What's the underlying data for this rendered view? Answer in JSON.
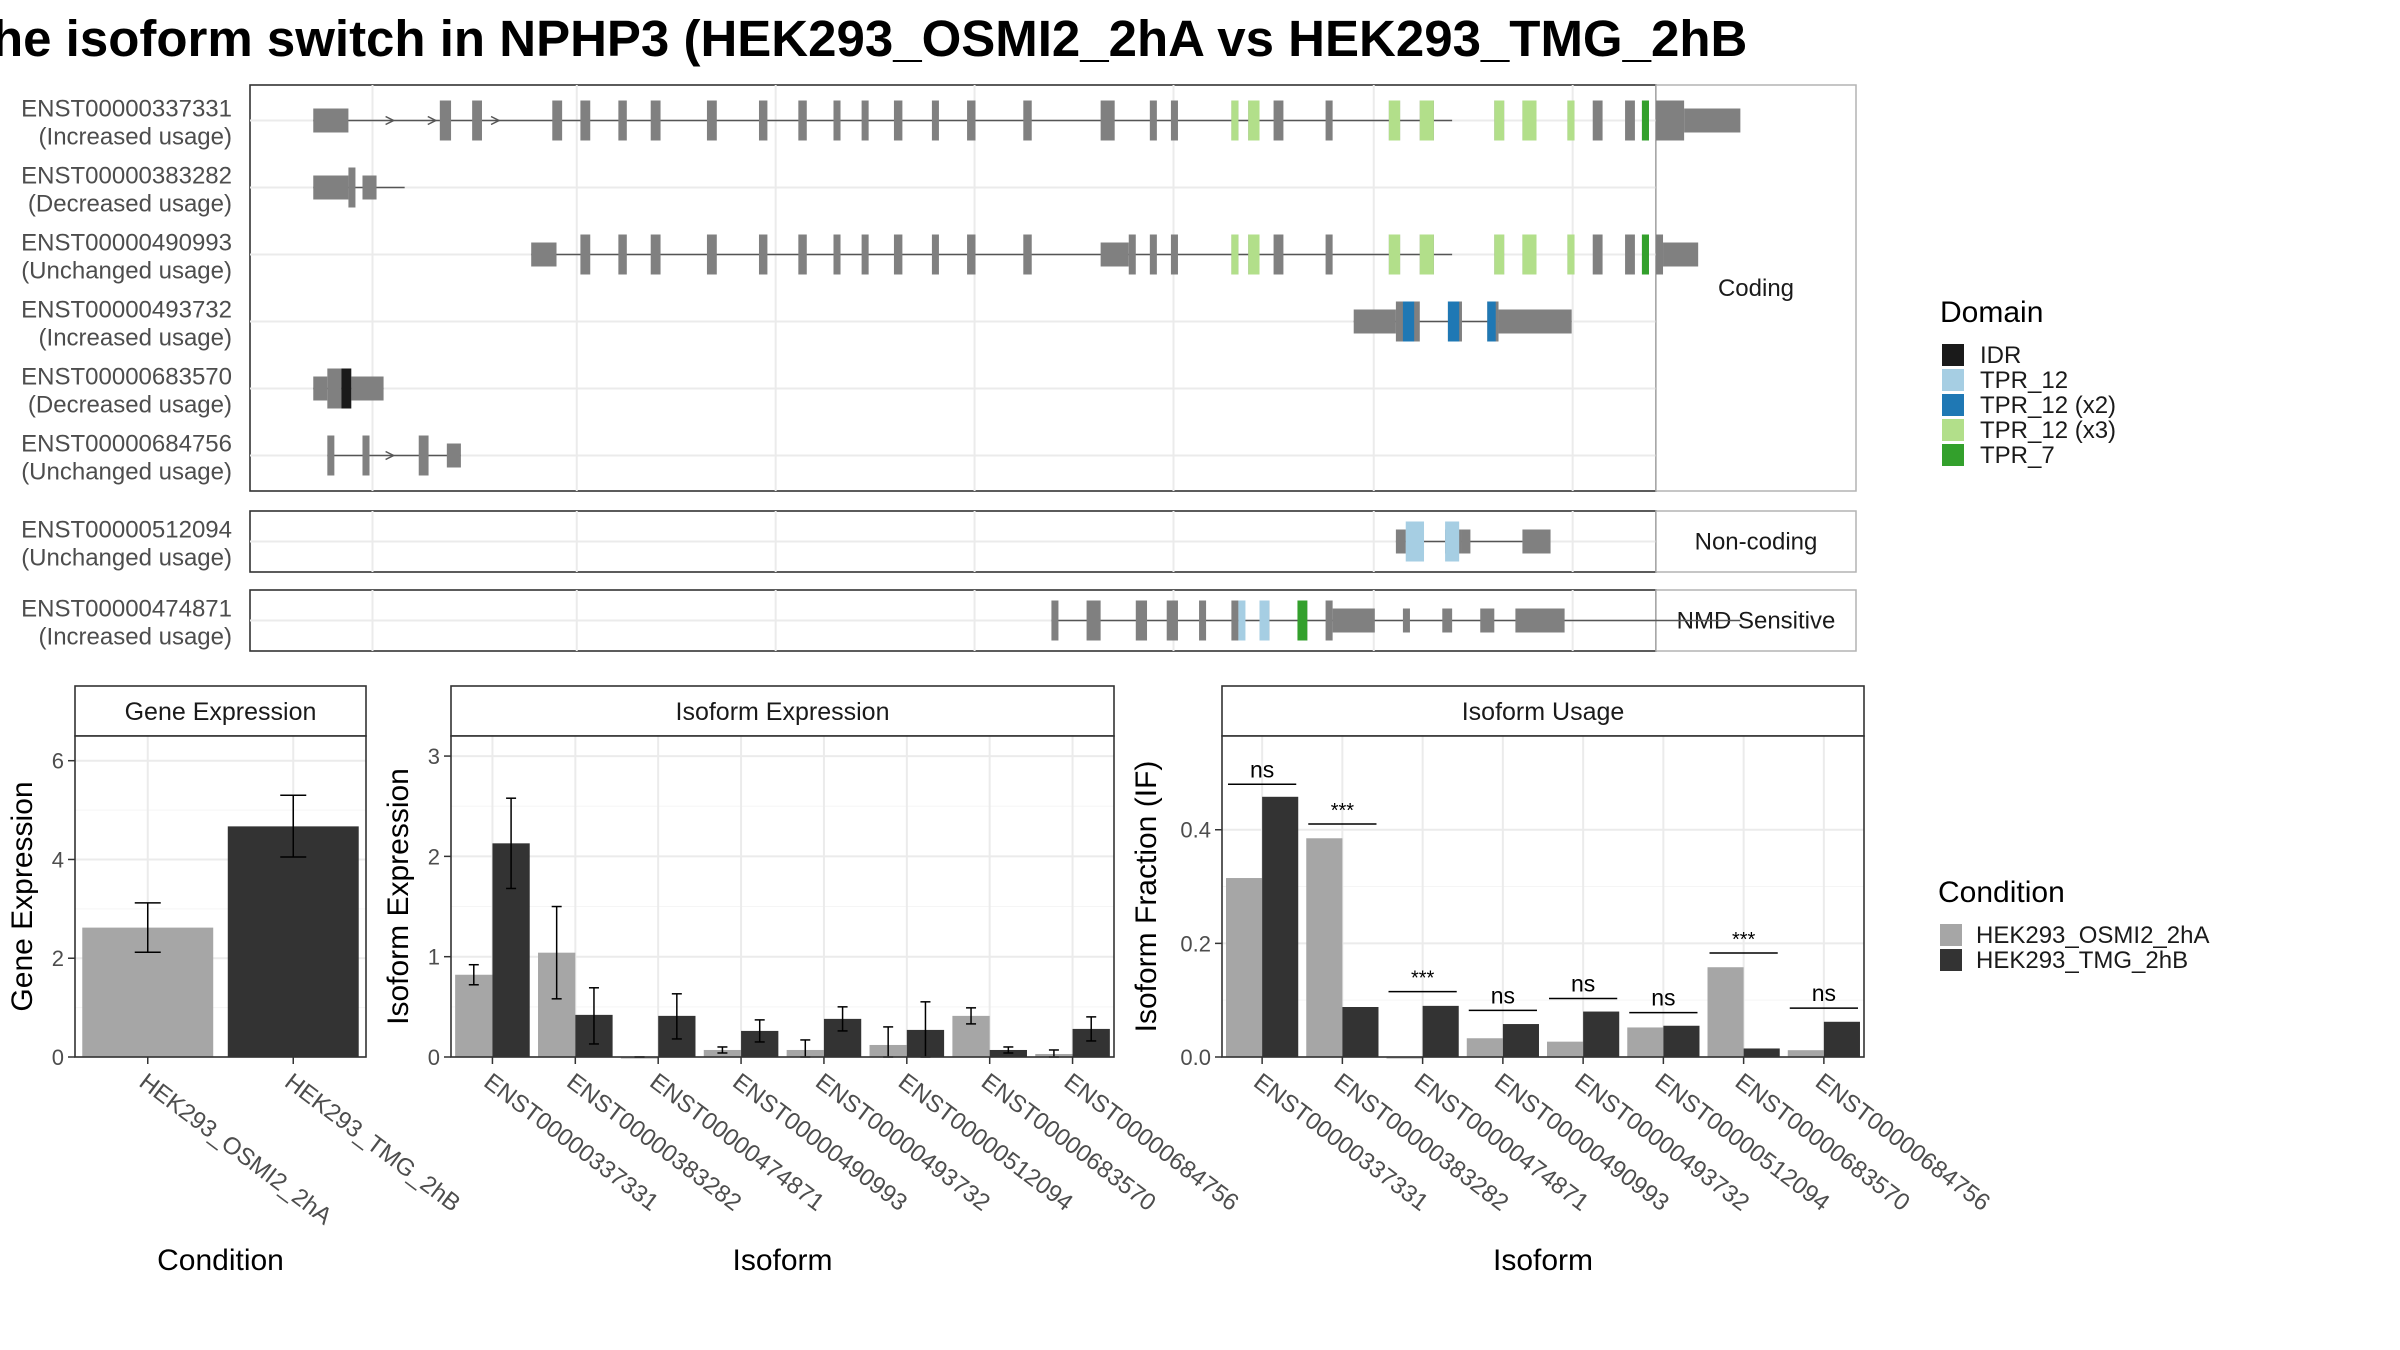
{
  "title": "he isoform switch in NPHP3 (HEK293_OSMI2_2hA vs HEK293_TMG_2hB",
  "colors": {
    "exon": "#808080",
    "intron": "#555555",
    "panel_border": "#333333",
    "strip_border": "#b3b3b3",
    "grid": "#ebebeb",
    "IDR": "#1a1a1a",
    "TPR_12": "#a6cee3",
    "TPR_12_x2": "#1f78b4",
    "TPR_12_x3": "#b2df8a",
    "TPR_7": "#33a02c",
    "HEK293_OSMI2_2hA": "#a6a6a6",
    "HEK293_TMG_2hB": "#333333"
  },
  "structure": {
    "genomic_range": [
      0,
      1000
    ],
    "groups": [
      {
        "label": "Coding",
        "transcripts": [
          {
            "id": "ENST00000337331",
            "usage": "(Increased usage)",
            "line": [
              45,
              855
            ],
            "arrows": [
              100,
              130,
              175
            ],
            "exons": [
              [
                45,
                70,
                "u"
              ],
              [
                135,
                143,
                "c"
              ],
              [
                158,
                165,
                "c"
              ],
              [
                215,
                222,
                "c"
              ],
              [
                235,
                242,
                "c"
              ],
              [
                262,
                268,
                "c"
              ],
              [
                285,
                292,
                "c"
              ],
              [
                325,
                332,
                "c"
              ],
              [
                362,
                368,
                "c"
              ],
              [
                390,
                396,
                "c"
              ],
              [
                415,
                420,
                "c"
              ],
              [
                435,
                440,
                "c"
              ],
              [
                458,
                464,
                "c"
              ],
              [
                485,
                490,
                "c"
              ],
              [
                510,
                516,
                "c"
              ],
              [
                550,
                556,
                "c"
              ],
              [
                605,
                615,
                "c"
              ],
              [
                640,
                645,
                "c"
              ],
              [
                655,
                660,
                "c"
              ],
              [
                698,
                703,
                "c"
              ],
              [
                710,
                718,
                "c"
              ],
              [
                728,
                735,
                "c"
              ],
              [
                765,
                770,
                "c"
              ],
              [
                810,
                818,
                "c"
              ],
              [
                832,
                842,
                "c"
              ],
              [
                885,
                892,
                "c"
              ],
              [
                905,
                915,
                "c"
              ],
              [
                937,
                942,
                "c"
              ],
              [
                955,
                962,
                "c"
              ],
              [
                978,
                985,
                "c"
              ],
              [
                990,
                995,
                "c"
              ],
              [
                1000,
                1020,
                "c"
              ],
              [
                1020,
                1060,
                "u"
              ]
            ],
            "domains": [
              [
                698,
                703,
                "TPR_12_x3"
              ],
              [
                710,
                718,
                "TPR_12_x3"
              ],
              [
                810,
                818,
                "TPR_12_x3"
              ],
              [
                832,
                842,
                "TPR_12_x3"
              ],
              [
                885,
                892,
                "TPR_12_x3"
              ],
              [
                905,
                915,
                "TPR_12_x3"
              ],
              [
                937,
                942,
                "TPR_12_x3"
              ],
              [
                990,
                995,
                "TPR_7"
              ]
            ]
          },
          {
            "id": "ENST00000383282",
            "usage": "(Decreased usage)",
            "line": [
              45,
              110
            ],
            "arrows": [],
            "exons": [
              [
                45,
                70,
                "u"
              ],
              [
                70,
                75,
                "c"
              ],
              [
                80,
                90,
                "u"
              ]
            ],
            "domains": []
          },
          {
            "id": "ENST00000490993",
            "usage": "(Unchanged usage)",
            "line": [
              200,
              855
            ],
            "arrows": [],
            "exons": [
              [
                200,
                218,
                "u"
              ],
              [
                235,
                242,
                "c"
              ],
              [
                262,
                268,
                "c"
              ],
              [
                285,
                292,
                "c"
              ],
              [
                325,
                332,
                "c"
              ],
              [
                362,
                368,
                "c"
              ],
              [
                390,
                396,
                "c"
              ],
              [
                415,
                420,
                "c"
              ],
              [
                435,
                440,
                "c"
              ],
              [
                458,
                464,
                "c"
              ],
              [
                485,
                490,
                "c"
              ],
              [
                510,
                516,
                "c"
              ],
              [
                550,
                556,
                "c"
              ],
              [
                605,
                625,
                "u"
              ],
              [
                625,
                630,
                "c"
              ],
              [
                640,
                645,
                "c"
              ],
              [
                655,
                660,
                "c"
              ],
              [
                698,
                703,
                "c"
              ],
              [
                710,
                718,
                "c"
              ],
              [
                728,
                735,
                "c"
              ],
              [
                765,
                770,
                "c"
              ],
              [
                810,
                818,
                "c"
              ],
              [
                832,
                842,
                "c"
              ],
              [
                885,
                892,
                "c"
              ],
              [
                905,
                915,
                "c"
              ],
              [
                937,
                942,
                "c"
              ],
              [
                955,
                962,
                "c"
              ],
              [
                978,
                985,
                "c"
              ],
              [
                990,
                995,
                "c"
              ],
              [
                1000,
                1005,
                "c"
              ],
              [
                1005,
                1030,
                "u"
              ]
            ],
            "domains": [
              [
                698,
                703,
                "TPR_12_x3"
              ],
              [
                710,
                718,
                "TPR_12_x3"
              ],
              [
                810,
                818,
                "TPR_12_x3"
              ],
              [
                832,
                842,
                "TPR_12_x3"
              ],
              [
                885,
                892,
                "TPR_12_x3"
              ],
              [
                905,
                915,
                "TPR_12_x3"
              ],
              [
                937,
                942,
                "TPR_12_x3"
              ],
              [
                990,
                995,
                "TPR_7"
              ]
            ]
          },
          {
            "id": "ENST00000493732",
            "usage": "(Increased usage)",
            "line": [
              785,
              940
            ],
            "arrows": [],
            "exons": [
              [
                785,
                815,
                "u"
              ],
              [
                815,
                832,
                "c"
              ],
              [
                852,
                862,
                "c"
              ],
              [
                880,
                888,
                "c"
              ],
              [
                888,
                940,
                "u"
              ]
            ],
            "domains": [
              [
                820,
                828,
                "TPR_12_x2"
              ],
              [
                852,
                860,
                "TPR_12_x2"
              ],
              [
                880,
                886,
                "TPR_12_x2"
              ]
            ]
          },
          {
            "id": "ENST00000683570",
            "usage": "(Decreased usage)",
            "line": [
              45,
              95
            ],
            "arrows": [],
            "exons": [
              [
                45,
                55,
                "u"
              ],
              [
                55,
                65,
                "c"
              ],
              [
                65,
                72,
                "c"
              ],
              [
                72,
                95,
                "u"
              ]
            ],
            "domains": [
              [
                65,
                72,
                "IDR"
              ]
            ]
          },
          {
            "id": "ENST00000684756",
            "usage": "(Unchanged usage)",
            "line": [
              55,
              150
            ],
            "arrows": [
              100
            ],
            "exons": [
              [
                55,
                60,
                "c"
              ],
              [
                80,
                85,
                "c"
              ],
              [
                120,
                127,
                "c"
              ],
              [
                140,
                150,
                "u"
              ]
            ],
            "domains": []
          }
        ]
      },
      {
        "label": "Non-coding",
        "transcripts": [
          {
            "id": "ENST00000512094",
            "usage": "(Unchanged usage)",
            "line": [
              815,
              905
            ],
            "arrows": [],
            "exons": [
              [
                815,
                822,
                "u"
              ],
              [
                822,
                835,
                "u"
              ],
              [
                850,
                862,
                "u"
              ],
              [
                862,
                868,
                "u"
              ],
              [
                905,
                925,
                "u"
              ]
            ],
            "domains": [
              [
                822,
                835,
                "TPR_12"
              ],
              [
                850,
                860,
                "TPR_12"
              ]
            ]
          }
        ]
      },
      {
        "label": "NMD Sensitive",
        "transcripts": [
          {
            "id": "ENST00000474871",
            "usage": "(Increased usage)",
            "line": [
              570,
              1060
            ],
            "arrows": [],
            "exons": [
              [
                570,
                575,
                "c"
              ],
              [
                595,
                605,
                "c"
              ],
              [
                630,
                638,
                "c"
              ],
              [
                652,
                660,
                "c"
              ],
              [
                675,
                680,
                "c"
              ],
              [
                698,
                703,
                "c"
              ],
              [
                718,
                725,
                "c"
              ],
              [
                745,
                752,
                "c"
              ],
              [
                765,
                770,
                "c"
              ],
              [
                770,
                800,
                "u"
              ],
              [
                820,
                825,
                "u"
              ],
              [
                848,
                855,
                "u"
              ],
              [
                875,
                885,
                "u"
              ],
              [
                900,
                935,
                "u"
              ]
            ],
            "domains": [
              [
                703,
                708,
                "TPR_12"
              ],
              [
                718,
                725,
                "TPR_12"
              ],
              [
                745,
                752,
                "TPR_7"
              ]
            ]
          }
        ]
      }
    ]
  },
  "legend_domain": {
    "title": "Domain",
    "items": [
      {
        "label": "IDR",
        "color": "#1a1a1a"
      },
      {
        "label": "TPR_12",
        "color": "#a6cee3"
      },
      {
        "label": "TPR_12 (x2)",
        "color": "#1f78b4"
      },
      {
        "label": "TPR_12 (x3)",
        "color": "#b2df8a"
      },
      {
        "label": "TPR_7",
        "color": "#33a02c"
      }
    ]
  },
  "legend_condition": {
    "title": "Condition",
    "items": [
      {
        "label": "HEK293_OSMI2_2hA",
        "color": "#a6a6a6"
      },
      {
        "label": "HEK293_TMG_2hB",
        "color": "#333333"
      }
    ]
  },
  "chart_data": [
    {
      "type": "bar",
      "title": "Gene Expression",
      "xlabel": "Condition",
      "ylabel": "Gene Expression",
      "ylim": [
        0,
        6.5
      ],
      "yticks": [
        0,
        2,
        4,
        6
      ],
      "categories": [
        "HEK293_OSMI2_2hA",
        "HEK293_TMG_2hB"
      ],
      "values": [
        2.62,
        4.67
      ],
      "errors": [
        [
          2.12,
          3.12
        ],
        [
          4.05,
          5.3
        ]
      ]
    },
    {
      "type": "bar",
      "title": "Isoform Expression",
      "xlabel": "Isoform",
      "ylabel": "Isoform Expression",
      "ylim": [
        0,
        3.2
      ],
      "yticks": [
        0,
        1,
        2,
        3
      ],
      "categories": [
        "ENST00000337331",
        "ENST00000383282",
        "ENST00000474871",
        "ENST00000490993",
        "ENST00000493732",
        "ENST00000512094",
        "ENST00000683570",
        "ENST00000684756"
      ],
      "series": [
        {
          "name": "HEK293_OSMI2_2hA",
          "values": [
            0.82,
            1.04,
            0.0,
            0.07,
            0.07,
            0.12,
            0.41,
            0.03
          ],
          "errors": [
            [
              0.72,
              0.92
            ],
            [
              0.58,
              1.5
            ],
            [
              0.0,
              0.0
            ],
            [
              0.04,
              0.1
            ],
            [
              0.0,
              0.17
            ],
            [
              0.0,
              0.3
            ],
            [
              0.33,
              0.49
            ],
            [
              0.0,
              0.07
            ]
          ]
        },
        {
          "name": "HEK293_TMG_2hB",
          "values": [
            2.13,
            0.42,
            0.41,
            0.26,
            0.38,
            0.27,
            0.07,
            0.28
          ],
          "errors": [
            [
              1.68,
              2.58
            ],
            [
              0.13,
              0.69
            ],
            [
              0.18,
              0.63
            ],
            [
              0.15,
              0.37
            ],
            [
              0.26,
              0.5
            ],
            [
              0.0,
              0.55
            ],
            [
              0.04,
              0.1
            ],
            [
              0.16,
              0.4
            ]
          ]
        }
      ]
    },
    {
      "type": "bar",
      "title": "Isoform Usage",
      "xlabel": "Isoform",
      "ylabel": "Isoform Fraction (IF)",
      "ylim": [
        0,
        0.565
      ],
      "yticks": [
        0.0,
        0.2,
        0.4
      ],
      "categories": [
        "ENST00000337331",
        "ENST00000383282",
        "ENST00000474871",
        "ENST00000490993",
        "ENST00000493732",
        "ENST00000512094",
        "ENST00000683570",
        "ENST00000684756"
      ],
      "series": [
        {
          "name": "HEK293_OSMI2_2hA",
          "values": [
            0.315,
            0.385,
            0.0,
            0.033,
            0.027,
            0.052,
            0.158,
            0.012
          ]
        },
        {
          "name": "HEK293_TMG_2hB",
          "values": [
            0.458,
            0.088,
            0.09,
            0.058,
            0.08,
            0.055,
            0.015,
            0.062
          ]
        }
      ],
      "annotations": [
        "ns",
        "***",
        "***",
        "ns",
        "ns",
        "ns",
        "***",
        "ns"
      ],
      "annotation_y": [
        0.48,
        0.41,
        0.115,
        0.082,
        0.103,
        0.078,
        0.183,
        0.086
      ]
    }
  ]
}
